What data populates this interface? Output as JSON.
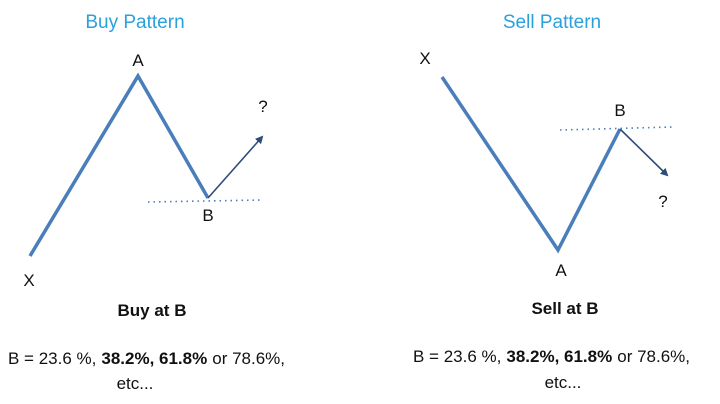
{
  "panels": [
    {
      "title": "Buy Pattern",
      "x_label": "X",
      "a_label": "A",
      "b_label": "B",
      "question": "?",
      "action": "Buy at B",
      "levels_line": [
        "B = 23.6 %,",
        "38.2%, 61.8%",
        "or 78.6%,"
      ],
      "levels_more": "etc..."
    },
    {
      "title": "Sell Pattern",
      "x_label": "X",
      "a_label": "A",
      "b_label": "B",
      "question": "?",
      "action": "Sell at B",
      "levels_line": [
        "B = 23.6 %,",
        "38.2%, 61.8%",
        "or 78.6%,"
      ],
      "levels_more": "etc..."
    }
  ]
}
